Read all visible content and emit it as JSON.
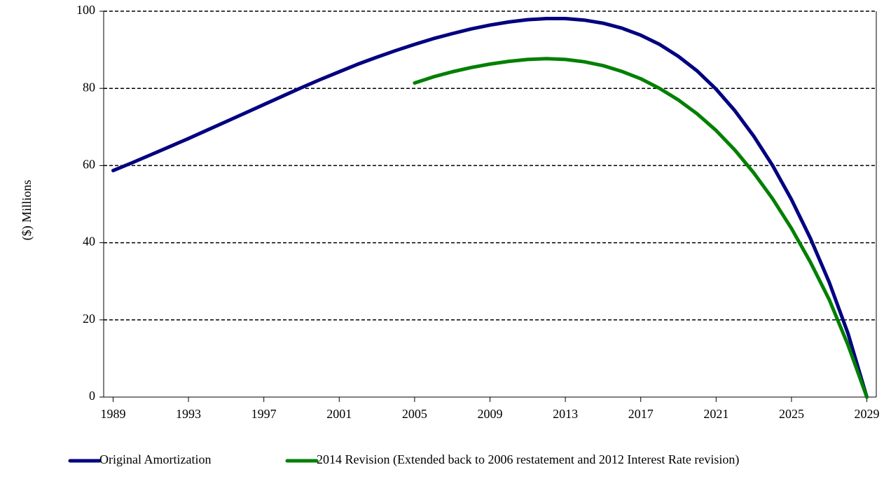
{
  "chart_data": {
    "type": "line",
    "y_label": "($) Millions",
    "x": [
      1989,
      1990,
      1991,
      1992,
      1993,
      1994,
      1995,
      1996,
      1997,
      1998,
      1999,
      2000,
      2001,
      2002,
      2003,
      2004,
      2005,
      2006,
      2007,
      2008,
      2009,
      2010,
      2011,
      2012,
      2013,
      2014,
      2015,
      2016,
      2017,
      2018,
      2019,
      2020,
      2021,
      2022,
      2023,
      2024,
      2025,
      2026,
      2027,
      2028,
      2029
    ],
    "series": [
      {
        "name": "Original Amortization",
        "color": "#000080",
        "values": [
          58.7,
          60.7,
          62.8,
          64.9,
          67.0,
          69.2,
          71.4,
          73.6,
          75.8,
          78.0,
          80.2,
          82.3,
          84.3,
          86.3,
          88.1,
          89.8,
          91.4,
          92.9,
          94.2,
          95.4,
          96.4,
          97.2,
          97.8,
          98.1,
          98.1,
          97.7,
          96.9,
          95.6,
          93.8,
          91.4,
          88.3,
          84.5,
          79.8,
          74.2,
          67.6,
          60.0,
          51.2,
          41.2,
          29.8,
          16.5,
          0
        ]
      },
      {
        "name": "2014 Revision (Extended back to 2006 restatement and 2012 Interest Rate revision)",
        "color": "#008000",
        "values": [
          null,
          null,
          null,
          null,
          null,
          null,
          null,
          null,
          null,
          null,
          null,
          null,
          null,
          null,
          null,
          null,
          81.4,
          83.0,
          84.3,
          85.4,
          86.3,
          87.0,
          87.5,
          87.7,
          87.5,
          86.9,
          85.9,
          84.4,
          82.5,
          80.0,
          77.0,
          73.4,
          69.1,
          64.0,
          58.1,
          51.4,
          43.7,
          35.0,
          25.3,
          13.5,
          0
        ]
      }
    ],
    "xlim": [
      1988.5,
      2029.5
    ],
    "xticks": [
      1989,
      1993,
      1997,
      2001,
      2005,
      2009,
      2013,
      2017,
      2021,
      2025,
      2029
    ],
    "ylim": [
      0,
      100
    ],
    "yticks": [
      0,
      20,
      40,
      60,
      80,
      100
    ],
    "grid": true,
    "legend": "bottom"
  }
}
